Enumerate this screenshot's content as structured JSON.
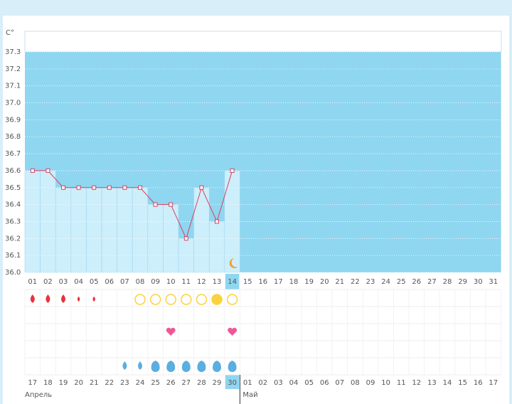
{
  "chart_data": {
    "type": "line",
    "y_label": "C°",
    "categories": [
      "01",
      "02",
      "03",
      "04",
      "05",
      "06",
      "07",
      "08",
      "09",
      "10",
      "11",
      "12",
      "13",
      "14",
      "15",
      "16",
      "17",
      "18",
      "19",
      "20",
      "21",
      "22",
      "23",
      "24",
      "25",
      "26",
      "27",
      "28",
      "29",
      "30",
      "31"
    ],
    "values": [
      36.6,
      36.6,
      36.5,
      36.5,
      36.5,
      36.5,
      36.5,
      36.5,
      36.4,
      36.4,
      36.2,
      36.5,
      36.3,
      36.6,
      null,
      null,
      null,
      null,
      null,
      null,
      null,
      null,
      null,
      null,
      null,
      null,
      null,
      null,
      null,
      null,
      null
    ],
    "color": "#d9415f",
    "ylim": [
      36.0,
      37.3
    ],
    "yticks": [
      {
        "value": 36.0,
        "label": "36.0"
      },
      36.1,
      36.2,
      36.3,
      36.4,
      36.5,
      36.6,
      36.7,
      36.8,
      36.9,
      {
        "value": 37.0,
        "label": "37.0"
      },
      37.1,
      37.2,
      37.3
    ],
    "grid": true,
    "dates": [
      "17",
      "18",
      "19",
      "20",
      "21",
      "22",
      "23",
      "24",
      "25",
      "26",
      "27",
      "28",
      "29",
      "30",
      "01",
      "02",
      "03",
      "04",
      "05",
      "06",
      "07",
      "08",
      "09",
      "10",
      "11",
      "12",
      "13",
      "14",
      "15",
      "16",
      "17"
    ],
    "date_colors": [
      "#555",
      "#555",
      "#555",
      "#e0245e",
      "#e0245e",
      "#555",
      "#555",
      "#555",
      "#555",
      "#555",
      "#e0245e",
      "#e0245e",
      "#555",
      "#555",
      "#555",
      "#555",
      "#555",
      "#e0245e",
      "#e0245e",
      "#555",
      "#555",
      "#555",
      "#555",
      "#555",
      "#e0245e",
      "#e0245e",
      "#555",
      "#555",
      "#555",
      "#555",
      "#555"
    ],
    "months": [
      "Апрель",
      "Май"
    ]
  }
}
